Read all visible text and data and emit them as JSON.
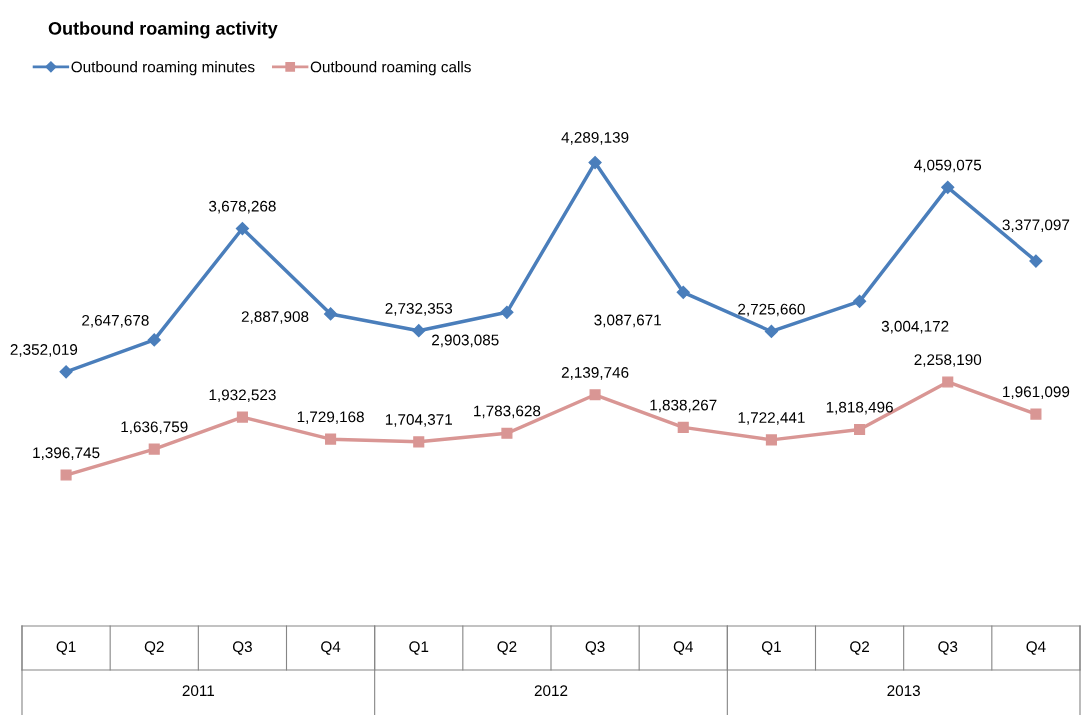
{
  "chart_data": {
    "type": "line",
    "title": "Outbound roaming activity",
    "categories": [
      "Q1",
      "Q2",
      "Q3",
      "Q4",
      "Q1",
      "Q2",
      "Q3",
      "Q4",
      "Q1",
      "Q2",
      "Q3",
      "Q4"
    ],
    "annotations": [
      "2011",
      "2012",
      "2013"
    ],
    "series": [
      {
        "name": "Outbound roaming minutes",
        "color": "#4a7ebb",
        "marker": "diamond",
        "values": [
          2352019,
          2647678,
          3678268,
          2887908,
          2732353,
          2903085,
          4289139,
          3087671,
          2725660,
          3004172,
          4059075,
          3377097
        ],
        "value_labels": [
          "2,352,019",
          "2,647,678",
          "3,678,268",
          "2,887,908",
          "2,732,353",
          "2,903,085",
          "4,289,139",
          "3,087,671",
          "2,725,660",
          "3,004,172",
          "4,059,075",
          "3,377,097"
        ]
      },
      {
        "name": "Outbound roaming calls",
        "color": "#d99694",
        "marker": "square",
        "values": [
          1396745,
          1636759,
          1932523,
          1729168,
          1704371,
          1783628,
          2139746,
          1838267,
          1722441,
          1818496,
          2258190,
          1961099
        ],
        "value_labels": [
          "1,396,745",
          "1,636,759",
          "1,932,523",
          "1,729,168",
          "1,704,371",
          "1,783,628",
          "2,139,746",
          "1,838,267",
          "1,722,441",
          "1,818,496",
          "2,258,190",
          "1,961,099"
        ]
      }
    ],
    "legend": "top left",
    "line_style": "solid"
  }
}
